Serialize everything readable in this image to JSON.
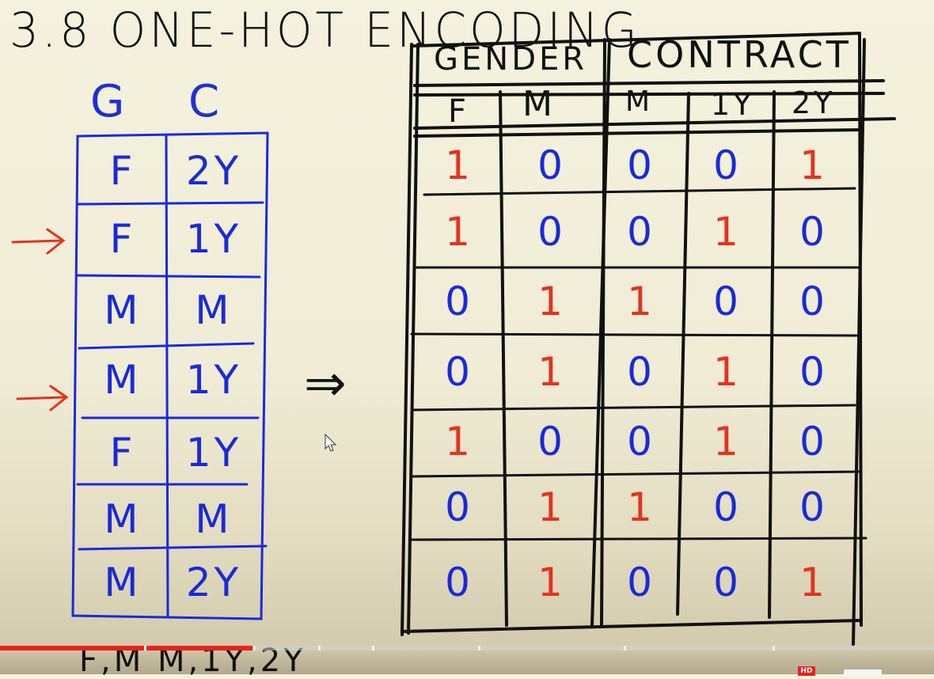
{
  "title": "3.8  ONE-HOT ENCODING",
  "left_table": {
    "headers": [
      "G",
      "C"
    ],
    "rows": [
      [
        "F",
        "2Y"
      ],
      [
        "F",
        "1Y"
      ],
      [
        "M",
        "M"
      ],
      [
        "M",
        "1Y"
      ],
      [
        "F",
        "1Y"
      ],
      [
        "M",
        "M"
      ],
      [
        "M",
        "2Y"
      ]
    ],
    "arrow_rows": [
      1,
      3
    ]
  },
  "implies_symbol": "⇒",
  "right_table": {
    "groups": [
      "GENDER",
      "CONTRACT"
    ],
    "subheaders": [
      "F",
      "M",
      "M",
      "1Y",
      "2Y"
    ],
    "rows": [
      [
        "1",
        "0",
        "0",
        "0",
        "1"
      ],
      [
        "1",
        "0",
        "0",
        "1",
        "0"
      ],
      [
        "0",
        "1",
        "1",
        "0",
        "0"
      ],
      [
        "0",
        "1",
        "0",
        "1",
        "0"
      ],
      [
        "1",
        "0",
        "0",
        "1",
        "0"
      ],
      [
        "0",
        "1",
        "1",
        "0",
        "0"
      ],
      [
        "0",
        "1",
        "0",
        "0",
        "1"
      ]
    ]
  },
  "bottom_text": "F,M  M,1Y,2Y",
  "player": {
    "progress_fraction": 0.27,
    "hd_badge": "HD"
  },
  "colors": {
    "ink": "#111111",
    "blue": "#1a2ad8",
    "red": "#e3331e",
    "paper": "#f4f1de",
    "progress": "#e8231b"
  }
}
